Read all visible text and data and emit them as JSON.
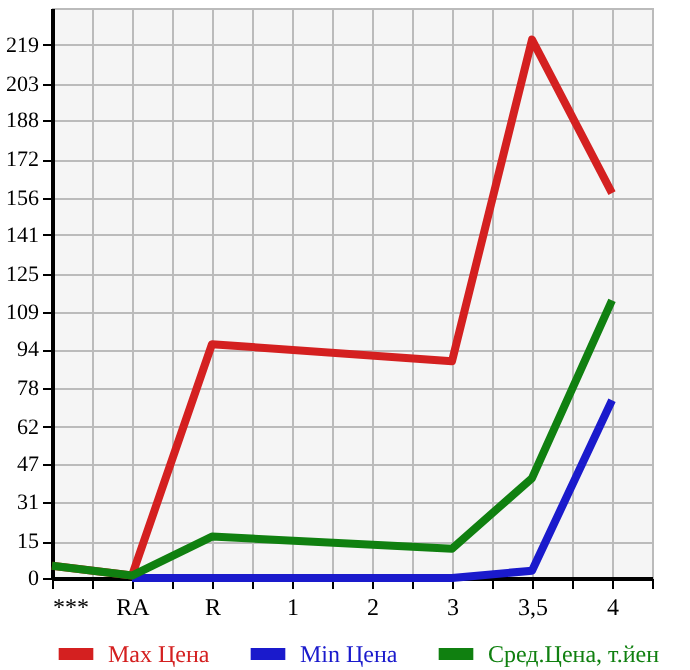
{
  "chart_data": {
    "type": "line",
    "categories": [
      "***",
      "RA",
      "R",
      "1",
      "2",
      "3",
      "3,5",
      "4"
    ],
    "series": [
      {
        "name": "Max Цена",
        "color": "#d42020",
        "values": [
          5,
          1,
          96,
          null,
          null,
          89,
          221,
          158
        ]
      },
      {
        "name": "Min Цена",
        "color": "#1a1acc",
        "values": [
          null,
          0,
          0,
          null,
          null,
          0,
          3,
          73
        ]
      },
      {
        "name": "Сред.Цена, т.йен",
        "color": "#108010",
        "values": [
          5,
          1,
          17,
          null,
          null,
          12,
          41,
          114
        ]
      }
    ],
    "ylim": [
      0,
      234
    ],
    "yticks": [
      0,
      15,
      31,
      47,
      62,
      78,
      94,
      109,
      125,
      141,
      156,
      172,
      188,
      203,
      219
    ],
    "grid": true,
    "legend": "bottom",
    "marker": "none",
    "line_style": "solid"
  }
}
